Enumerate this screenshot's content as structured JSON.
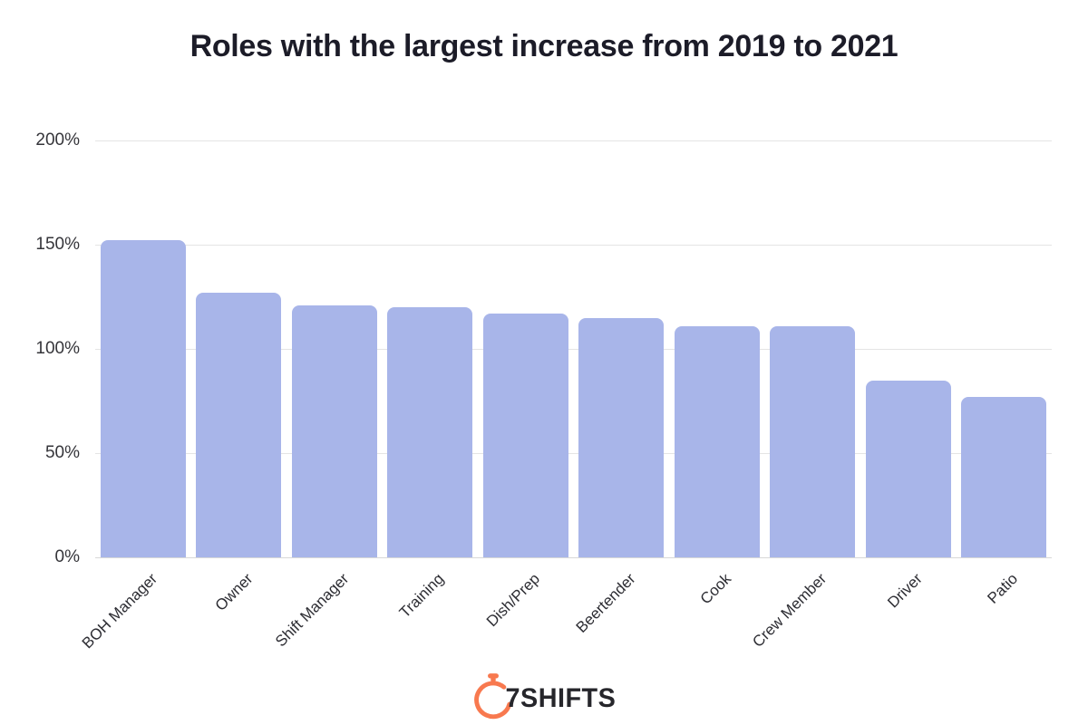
{
  "chart_data": {
    "type": "bar",
    "title": "Roles with the largest increase from 2019 to 2021",
    "categories": [
      "BOH Manager",
      "Owner",
      "Shift Manager",
      "Training",
      "Dish/Prep",
      "Beertender",
      "Cook",
      "Crew Member",
      "Driver",
      "Patio"
    ],
    "values": [
      152,
      127,
      121,
      120,
      117,
      115,
      111,
      111,
      85,
      77
    ],
    "unit": "%",
    "xlabel": "",
    "ylabel": "",
    "ylim": [
      0,
      200
    ],
    "y_ticks": [
      "200%",
      "150%",
      "100%",
      "50%",
      "0%"
    ],
    "grid": true,
    "legend": "none",
    "bar_color": "#a8b5e9",
    "gridline_color": "#e4e4e4",
    "baseline_color": "#d8d8d8",
    "title_color": "#1c1c28",
    "axis_label_color": "#35353a"
  },
  "branding": {
    "logo_text": "7SHIFTS",
    "icon": "stopwatch-icon",
    "icon_color": "#f8794f",
    "text_color": "#26262b"
  }
}
